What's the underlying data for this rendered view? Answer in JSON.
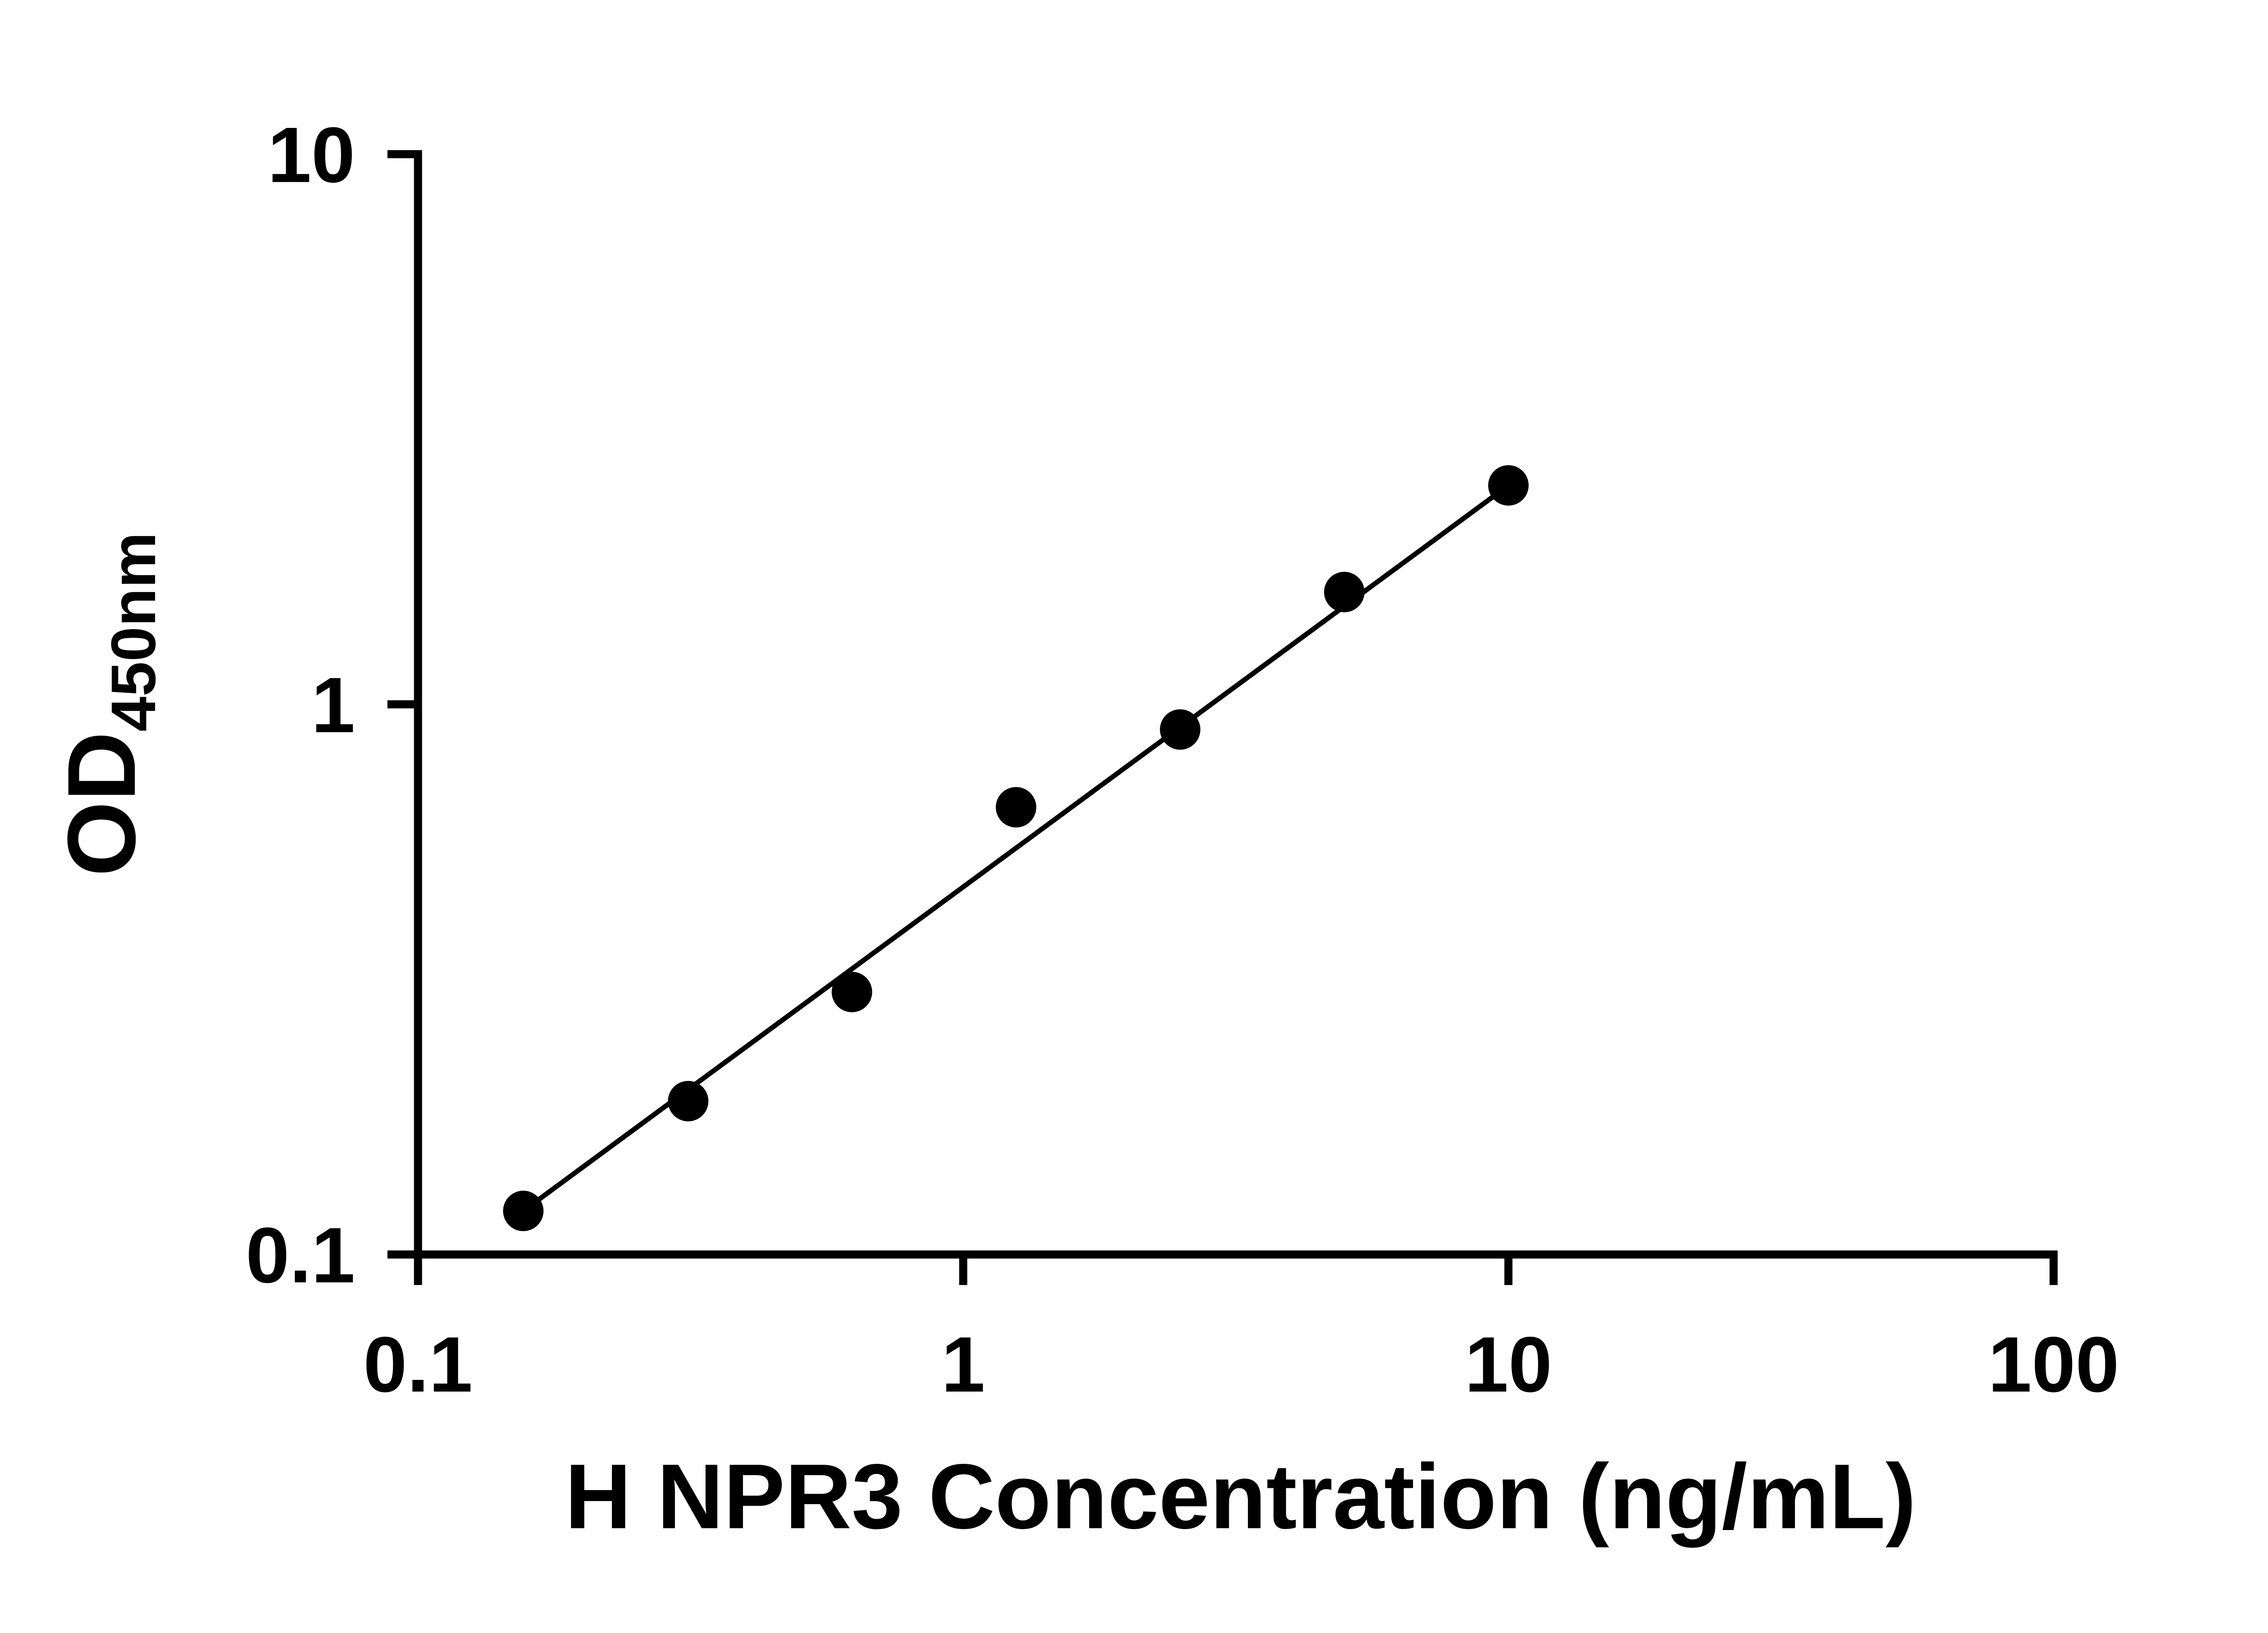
{
  "chart_data": {
    "type": "scatter",
    "title": "",
    "xlabel": "H NPR3 Concentration (ng/mL)",
    "ylabel_main": "OD",
    "ylabel_sub": "450nm",
    "x_scale": "log",
    "y_scale": "log",
    "xlim": [
      0.1,
      100
    ],
    "ylim": [
      0.1,
      10
    ],
    "grid": false,
    "legend": "none",
    "x_ticks": [
      {
        "value": 0.1,
        "label": "0.1"
      },
      {
        "value": 1,
        "label": "1"
      },
      {
        "value": 10,
        "label": "10"
      },
      {
        "value": 100,
        "label": "100"
      }
    ],
    "y_ticks": [
      {
        "value": 0.1,
        "label": "0.1"
      },
      {
        "value": 1,
        "label": "1"
      },
      {
        "value": 10,
        "label": "10"
      }
    ],
    "points": [
      {
        "x": 0.156,
        "y": 0.12
      },
      {
        "x": 0.313,
        "y": 0.19
      },
      {
        "x": 0.625,
        "y": 0.3
      },
      {
        "x": 1.25,
        "y": 0.65
      },
      {
        "x": 2.5,
        "y": 0.9
      },
      {
        "x": 5,
        "y": 1.6
      },
      {
        "x": 10,
        "y": 2.5
      }
    ],
    "fit_line": {
      "from": {
        "x": 0.156,
        "y": 0.12
      },
      "to": {
        "x": 10,
        "y": 2.5
      }
    },
    "marker_color": "#000000",
    "line_color": "#000000",
    "axis_color": "#000000"
  }
}
